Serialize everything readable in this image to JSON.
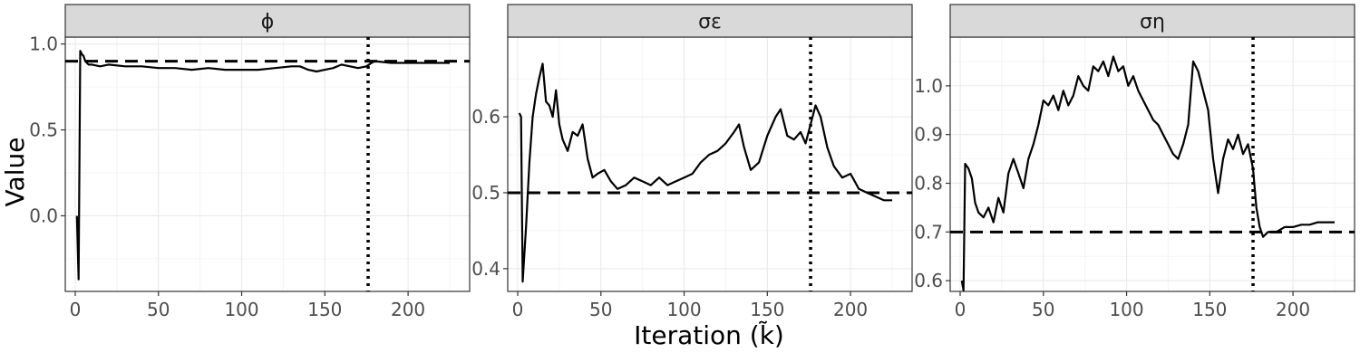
{
  "figure": {
    "ylabel": "Value",
    "xlabel": "Iteration (k̃)"
  },
  "colors": {
    "line": "#000000",
    "strip_fill": "#d9d9d9",
    "strip_border": "#333333",
    "grid_major": "#ebebeb",
    "grid_minor": "#f4f4f4",
    "panel_border": "#333333"
  },
  "chart_data": [
    {
      "type": "line",
      "title": "ϕ",
      "xlim": [
        -6,
        237
      ],
      "ylim": [
        -0.44,
        1.04
      ],
      "x_ticks": [
        0,
        50,
        100,
        150,
        200
      ],
      "y_ticks": [
        0.0,
        0.5,
        1.0
      ],
      "y_tick_labels": [
        "0.0",
        "0.5",
        "1.0"
      ],
      "true_value": 0.9,
      "vline_x": 176,
      "series": [
        {
          "x": [
            1,
            2,
            3,
            4,
            5,
            6,
            8,
            10,
            15,
            20,
            30,
            40,
            50,
            60,
            70,
            80,
            90,
            100,
            110,
            120,
            130,
            135,
            140,
            145,
            150,
            155,
            160,
            165,
            170,
            175,
            178,
            180,
            190,
            200,
            210,
            220,
            225
          ],
          "y": [
            0.0,
            -0.37,
            0.96,
            0.94,
            0.93,
            0.9,
            0.88,
            0.88,
            0.87,
            0.88,
            0.87,
            0.87,
            0.86,
            0.86,
            0.85,
            0.86,
            0.85,
            0.85,
            0.85,
            0.86,
            0.87,
            0.87,
            0.85,
            0.84,
            0.85,
            0.86,
            0.88,
            0.87,
            0.86,
            0.87,
            0.89,
            0.9,
            0.89,
            0.89,
            0.89,
            0.89,
            0.89
          ]
        }
      ]
    },
    {
      "type": "line",
      "title": "σε",
      "xlim": [
        -6,
        237
      ],
      "ylim": [
        0.37,
        0.705
      ],
      "x_ticks": [
        0,
        50,
        100,
        150,
        200
      ],
      "y_ticks": [
        0.4,
        0.5,
        0.6
      ],
      "y_tick_labels": [
        "0.4",
        "0.5",
        "0.6"
      ],
      "true_value": 0.5,
      "vline_x": 176,
      "series": [
        {
          "x": [
            1,
            2,
            3,
            5,
            7,
            9,
            11,
            13,
            15,
            17,
            19,
            21,
            23,
            25,
            27,
            30,
            33,
            36,
            39,
            42,
            45,
            48,
            52,
            56,
            60,
            65,
            70,
            75,
            80,
            85,
            90,
            95,
            100,
            105,
            110,
            115,
            120,
            125,
            130,
            133,
            136,
            140,
            145,
            150,
            155,
            158,
            162,
            166,
            170,
            173,
            176,
            179,
            182,
            186,
            190,
            195,
            200,
            205,
            210,
            215,
            220,
            225
          ],
          "y": [
            0.605,
            0.6,
            0.383,
            0.455,
            0.54,
            0.6,
            0.63,
            0.652,
            0.67,
            0.62,
            0.615,
            0.6,
            0.635,
            0.59,
            0.57,
            0.555,
            0.58,
            0.575,
            0.59,
            0.545,
            0.52,
            0.525,
            0.53,
            0.515,
            0.505,
            0.51,
            0.52,
            0.515,
            0.51,
            0.52,
            0.51,
            0.515,
            0.52,
            0.525,
            0.54,
            0.55,
            0.555,
            0.565,
            0.58,
            0.59,
            0.56,
            0.53,
            0.54,
            0.575,
            0.6,
            0.61,
            0.575,
            0.57,
            0.58,
            0.565,
            0.59,
            0.615,
            0.6,
            0.56,
            0.535,
            0.52,
            0.525,
            0.505,
            0.5,
            0.495,
            0.49,
            0.49
          ]
        }
      ]
    },
    {
      "type": "line",
      "title": "ση",
      "xlim": [
        -6,
        237
      ],
      "ylim": [
        0.578,
        1.1
      ],
      "x_ticks": [
        0,
        50,
        100,
        150,
        200
      ],
      "y_ticks": [
        0.6,
        0.7,
        0.8,
        0.9,
        1.0
      ],
      "y_tick_labels": [
        "0.6",
        "0.7",
        "0.8",
        "0.9",
        "1.0"
      ],
      "true_value": 0.7,
      "vline_x": 176,
      "series": [
        {
          "x": [
            1,
            2,
            3,
            5,
            7,
            9,
            11,
            14,
            17,
            20,
            23,
            26,
            29,
            32,
            35,
            38,
            41,
            44,
            47,
            50,
            53,
            56,
            59,
            62,
            65,
            68,
            71,
            74,
            77,
            80,
            83,
            86,
            89,
            92,
            95,
            98,
            101,
            104,
            107,
            110,
            113,
            116,
            119,
            122,
            125,
            128,
            131,
            134,
            137,
            140,
            143,
            146,
            149,
            152,
            155,
            158,
            161,
            164,
            167,
            170,
            173,
            176,
            178,
            180,
            182,
            185,
            190,
            195,
            200,
            205,
            210,
            215,
            220,
            225
          ],
          "y": [
            0.6,
            0.58,
            0.84,
            0.83,
            0.81,
            0.76,
            0.74,
            0.73,
            0.75,
            0.72,
            0.77,
            0.74,
            0.82,
            0.85,
            0.82,
            0.79,
            0.85,
            0.88,
            0.92,
            0.97,
            0.96,
            0.98,
            0.95,
            0.99,
            0.96,
            0.98,
            1.02,
            1.0,
            0.99,
            1.04,
            1.03,
            1.05,
            1.02,
            1.06,
            1.03,
            1.04,
            1.0,
            1.02,
            0.99,
            0.97,
            0.95,
            0.93,
            0.92,
            0.9,
            0.88,
            0.86,
            0.85,
            0.88,
            0.92,
            1.05,
            1.03,
            0.99,
            0.95,
            0.85,
            0.78,
            0.85,
            0.89,
            0.87,
            0.9,
            0.86,
            0.88,
            0.83,
            0.75,
            0.71,
            0.69,
            0.7,
            0.7,
            0.71,
            0.71,
            0.715,
            0.715,
            0.72,
            0.72,
            0.72
          ]
        }
      ]
    }
  ]
}
